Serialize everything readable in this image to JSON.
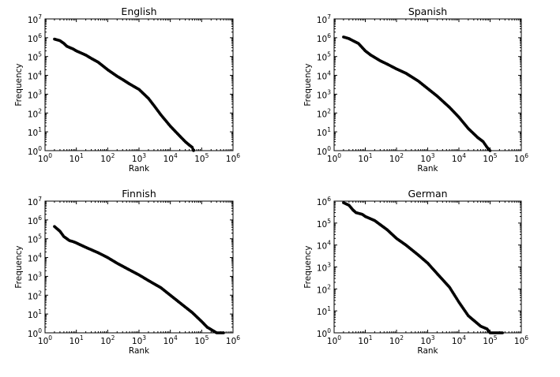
{
  "chart_data": [
    {
      "type": "scatter",
      "title": "English",
      "xlabel": "Rank",
      "ylabel": "Frequency",
      "xscale": "log",
      "yscale": "log",
      "xlim": [
        1,
        1000000
      ],
      "ylim": [
        1,
        10000000
      ],
      "xticks": [
        {
          "label": "10",
          "sup": "0"
        },
        {
          "label": "10",
          "sup": "1"
        },
        {
          "label": "10",
          "sup": "2"
        },
        {
          "label": "10",
          "sup": "3"
        },
        {
          "label": "10",
          "sup": "4"
        },
        {
          "label": "10",
          "sup": "5"
        },
        {
          "label": "10",
          "sup": "6"
        }
      ],
      "yticks": [
        {
          "label": "10",
          "sup": "0"
        },
        {
          "label": "10",
          "sup": "1"
        },
        {
          "label": "10",
          "sup": "2"
        },
        {
          "label": "10",
          "sup": "3"
        },
        {
          "label": "10",
          "sup": "4"
        },
        {
          "label": "10",
          "sup": "5"
        },
        {
          "label": "10",
          "sup": "6"
        },
        {
          "label": "10",
          "sup": "7"
        }
      ],
      "grid": false,
      "x": [
        2,
        3,
        4,
        5,
        8,
        10,
        20,
        30,
        50,
        100,
        200,
        300,
        500,
        1000,
        2000,
        3000,
        5000,
        10000,
        20000,
        30000,
        40000,
        50000,
        55000
      ],
      "y": [
        850000,
        700000,
        500000,
        350000,
        250000,
        200000,
        120000,
        80000,
        50000,
        20000,
        9000,
        6000,
        3500,
        1800,
        600,
        250,
        80,
        20,
        6,
        3,
        2,
        1.5,
        1
      ]
    },
    {
      "type": "scatter",
      "title": "Spanish",
      "xlabel": "Rank",
      "ylabel": "Frequency",
      "xscale": "log",
      "yscale": "log",
      "xlim": [
        1,
        1000000
      ],
      "ylim": [
        1,
        10000000
      ],
      "xticks": [
        {
          "label": "10",
          "sup": "0"
        },
        {
          "label": "10",
          "sup": "1"
        },
        {
          "label": "10",
          "sup": "2"
        },
        {
          "label": "10",
          "sup": "3"
        },
        {
          "label": "10",
          "sup": "4"
        },
        {
          "label": "10",
          "sup": "5"
        },
        {
          "label": "10",
          "sup": "6"
        }
      ],
      "yticks": [
        {
          "label": "10",
          "sup": "0"
        },
        {
          "label": "10",
          "sup": "1"
        },
        {
          "label": "10",
          "sup": "2"
        },
        {
          "label": "10",
          "sup": "3"
        },
        {
          "label": "10",
          "sup": "4"
        },
        {
          "label": "10",
          "sup": "5"
        },
        {
          "label": "10",
          "sup": "6"
        },
        {
          "label": "10",
          "sup": "7"
        }
      ],
      "grid": false,
      "x": [
        2,
        3,
        4,
        6,
        8,
        10,
        15,
        20,
        30,
        50,
        100,
        200,
        500,
        1000,
        2000,
        5000,
        10000,
        20000,
        40000,
        60000,
        80000,
        100000
      ],
      "y": [
        1100000,
        900000,
        700000,
        500000,
        300000,
        200000,
        120000,
        90000,
        60000,
        40000,
        22000,
        13000,
        5000,
        2000,
        800,
        200,
        60,
        15,
        5,
        3,
        1.5,
        1
      ]
    },
    {
      "type": "scatter",
      "title": "Finnish",
      "xlabel": "Rank",
      "ylabel": "Frequency",
      "xscale": "log",
      "yscale": "log",
      "xlim": [
        1,
        1000000
      ],
      "ylim": [
        1,
        10000000
      ],
      "xticks": [
        {
          "label": "10",
          "sup": "0"
        },
        {
          "label": "10",
          "sup": "1"
        },
        {
          "label": "10",
          "sup": "2"
        },
        {
          "label": "10",
          "sup": "3"
        },
        {
          "label": "10",
          "sup": "4"
        },
        {
          "label": "10",
          "sup": "5"
        },
        {
          "label": "10",
          "sup": "6"
        }
      ],
      "yticks": [
        {
          "label": "10",
          "sup": "0"
        },
        {
          "label": "10",
          "sup": "1"
        },
        {
          "label": "10",
          "sup": "2"
        },
        {
          "label": "10",
          "sup": "3"
        },
        {
          "label": "10",
          "sup": "4"
        },
        {
          "label": "10",
          "sup": "5"
        },
        {
          "label": "10",
          "sup": "6"
        },
        {
          "label": "10",
          "sup": "7"
        }
      ],
      "grid": false,
      "x": [
        2,
        3,
        4,
        5,
        6,
        8,
        10,
        20,
        50,
        100,
        200,
        500,
        1000,
        2000,
        5000,
        10000,
        20000,
        50000,
        100000,
        150000,
        200000,
        300000,
        400000,
        500000
      ],
      "y": [
        450000,
        250000,
        130000,
        100000,
        80000,
        70000,
        60000,
        35000,
        18000,
        10000,
        5000,
        2200,
        1200,
        600,
        250,
        100,
        40,
        12,
        4,
        2,
        1.5,
        1,
        1,
        1
      ]
    },
    {
      "type": "scatter",
      "title": "German",
      "xlabel": "Rank",
      "ylabel": "Frequency",
      "xscale": "log",
      "yscale": "log",
      "xlim": [
        1,
        1000000
      ],
      "ylim": [
        1,
        1000000
      ],
      "xticks": [
        {
          "label": "10",
          "sup": "0"
        },
        {
          "label": "10",
          "sup": "1"
        },
        {
          "label": "10",
          "sup": "2"
        },
        {
          "label": "10",
          "sup": "3"
        },
        {
          "label": "10",
          "sup": "4"
        },
        {
          "label": "10",
          "sup": "5"
        },
        {
          "label": "10",
          "sup": "6"
        }
      ],
      "yticks": [
        {
          "label": "10",
          "sup": "0"
        },
        {
          "label": "10",
          "sup": "1"
        },
        {
          "label": "10",
          "sup": "2"
        },
        {
          "label": "10",
          "sup": "3"
        },
        {
          "label": "10",
          "sup": "4"
        },
        {
          "label": "10",
          "sup": "5"
        },
        {
          "label": "10",
          "sup": "6"
        }
      ],
      "grid": false,
      "x": [
        2,
        3,
        4,
        5,
        8,
        10,
        20,
        50,
        100,
        200,
        500,
        1000,
        2000,
        5000,
        10000,
        20000,
        50000,
        80000,
        100000,
        150000,
        200000,
        250000
      ],
      "y": [
        850000,
        650000,
        400000,
        300000,
        250000,
        200000,
        130000,
        50000,
        20000,
        10000,
        3500,
        1500,
        500,
        120,
        25,
        6,
        2,
        1.5,
        1,
        1,
        1,
        1
      ]
    }
  ]
}
